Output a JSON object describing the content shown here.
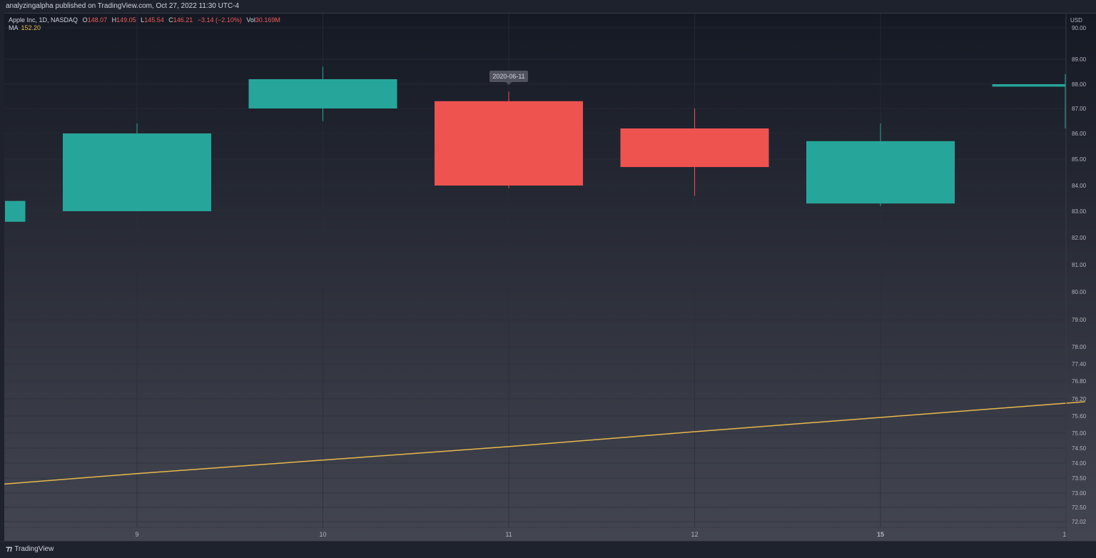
{
  "header": {
    "published_text": "analyzingalpha published on TradingView.com, Oct 27, 2022 11:30 UTC-4"
  },
  "legend": {
    "symbol": "Apple Inc, 1D, NASDAQ",
    "open_label": "O",
    "open": "148.07",
    "high_label": "H",
    "high": "149.05",
    "low_label": "L",
    "low": "145.54",
    "close_label": "C",
    "close": "146.21",
    "change": "−3.14 (−2.10%)",
    "vol_label": "Vol",
    "vol": "30.169M",
    "ma_label": "MA",
    "ma_value": "152.20"
  },
  "footer": {
    "brand": "TradingView"
  },
  "colors": {
    "up": "#26a69a",
    "down": "#ef5350",
    "ma": "#e8b84c",
    "axis_text": "#b2b5be",
    "grid": "#2a2e39"
  },
  "chart_data": {
    "type": "candlestick",
    "currency_label": "USD",
    "price_axis_ticks": [
      "90.00",
      "89.00",
      "88.00",
      "87.00",
      "86.00",
      "85.00",
      "84.00",
      "83.00",
      "82.00",
      "81.00",
      "80.00",
      "79.00",
      "78.00",
      "77.40",
      "76.80",
      "76.20",
      "75.60",
      "75.00",
      "74.50",
      "74.00",
      "73.50",
      "73.00",
      "72.50",
      "72.02"
    ],
    "time_axis_ticks": [
      {
        "label": "9",
        "index": 1,
        "bold": false
      },
      {
        "label": "10",
        "index": 2,
        "bold": false
      },
      {
        "label": "11",
        "index": 3,
        "bold": false
      },
      {
        "label": "12",
        "index": 4,
        "bold": false
      },
      {
        "label": "15",
        "index": 5,
        "bold": true
      },
      {
        "label": "1",
        "index": 6,
        "bold": false
      }
    ],
    "crosshair_label": "2020-06-11",
    "candles": [
      {
        "index": 0,
        "open": 82.6,
        "close": 83.4,
        "high": 83.4,
        "low": 82.6
      },
      {
        "index": 1,
        "open": 83.0,
        "close": 86.0,
        "high": 86.4,
        "low": 83.0
      },
      {
        "index": 2,
        "open": 87.0,
        "close": 88.2,
        "high": 88.7,
        "low": 86.5
      },
      {
        "index": 3,
        "open": 87.3,
        "close": 84.0,
        "high": 87.7,
        "low": 83.9
      },
      {
        "index": 4,
        "open": 86.2,
        "close": 84.7,
        "high": 87.0,
        "low": 83.6
      },
      {
        "index": 5,
        "open": 83.3,
        "close": 85.7,
        "high": 86.4,
        "low": 83.2
      },
      {
        "index": 6,
        "open": 87.9,
        "close": 88.0,
        "high": 88.4,
        "low": 86.2
      }
    ],
    "ma_series": [
      {
        "index": -0.7,
        "value": 73.3
      },
      {
        "index": 1,
        "value": 73.65
      },
      {
        "index": 2,
        "value": 74.1
      },
      {
        "index": 3,
        "value": 74.55
      },
      {
        "index": 4,
        "value": 75.05
      },
      {
        "index": 5,
        "value": 75.55
      },
      {
        "index": 6.1,
        "value": 76.1
      }
    ]
  }
}
